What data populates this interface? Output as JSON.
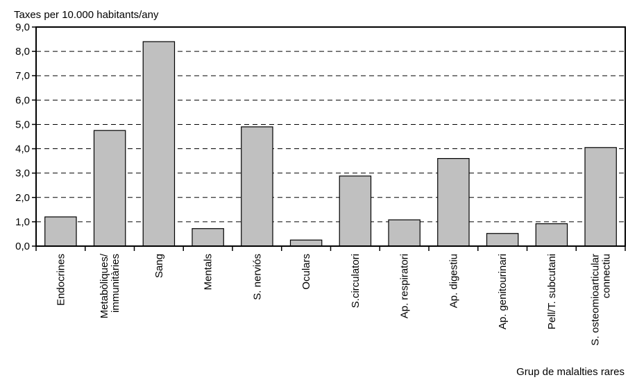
{
  "chart_data": {
    "type": "bar",
    "ylabel": "Taxes per 10.000 habitants/any",
    "xlabel": "Grup de malalties rares",
    "ylim": [
      0,
      9
    ],
    "yticks": [
      "0,0",
      "1,0",
      "2,0",
      "3,0",
      "4,0",
      "5,0",
      "6,0",
      "7,0",
      "8,0",
      "9,0"
    ],
    "grid": "dashed horizontal",
    "categories": [
      [
        "Endocrines"
      ],
      [
        "Metabòliques/",
        "immunitàries"
      ],
      [
        "Sang"
      ],
      [
        "Mentals"
      ],
      [
        "S. nerviós"
      ],
      [
        "Oculars"
      ],
      [
        "S.circulatori"
      ],
      [
        "Ap. respiratori"
      ],
      [
        "Ap. digestiu"
      ],
      [
        "Ap. genitourinari"
      ],
      [
        "Pell/T. subcutani"
      ],
      [
        "S. osteomioarticular",
        "connectiu"
      ]
    ],
    "values": [
      1.2,
      4.75,
      8.4,
      0.72,
      4.9,
      0.25,
      2.88,
      1.08,
      3.6,
      0.52,
      0.92,
      4.05
    ],
    "colors": {
      "bar": "#c0c0c0",
      "stroke": "#000000"
    }
  }
}
